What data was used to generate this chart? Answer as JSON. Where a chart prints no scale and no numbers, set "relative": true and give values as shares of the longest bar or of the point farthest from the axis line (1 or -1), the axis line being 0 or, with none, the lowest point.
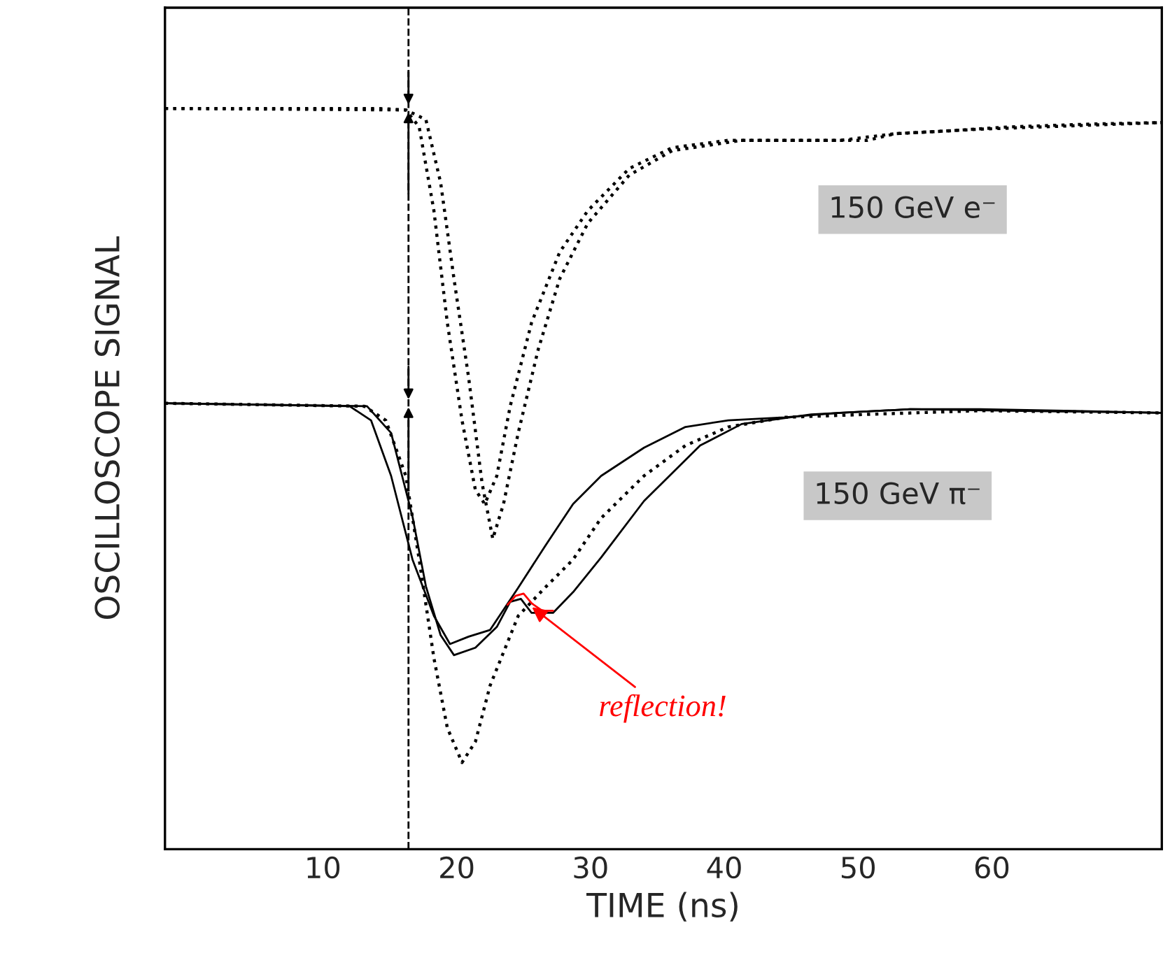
{
  "chart_data": {
    "type": "line",
    "relative": true,
    "xlabel": "TIME (ns)",
    "ylabel": "OSCILLOSCOPE SIGNAL",
    "xlim": [
      -1.8,
      72.7
    ],
    "xticks": [
      10,
      20,
      30,
      40,
      50,
      60
    ],
    "grid": false,
    "legend": false,
    "marker": "none",
    "series": [
      {
        "color": "#000000",
        "line_style": "dotted",
        "x": [
          -1.8,
          14.1,
          16.2,
          17.2,
          18.3,
          19.3,
          20.4,
          21.4,
          22.1,
          23.0,
          24.0,
          25.6,
          27.7,
          29.8,
          32.9,
          36.1,
          40.3,
          46.5,
          50.7,
          52.8,
          57.0,
          61.2,
          67.5,
          72.7
        ],
        "values": [
          1.0,
          1.0,
          0.998,
          0.975,
          0.862,
          0.711,
          0.579,
          0.485,
          0.466,
          0.504,
          0.598,
          0.711,
          0.806,
          0.862,
          0.919,
          0.947,
          0.957,
          0.957,
          0.957,
          0.966,
          0.97,
          0.975,
          0.979,
          0.981
        ]
      },
      {
        "color": "#000000",
        "line_style": "dotted",
        "x": [
          -1.8,
          16.2,
          17.7,
          18.8,
          19.8,
          20.9,
          21.9,
          22.7,
          23.5,
          24.6,
          26.1,
          27.7,
          29.8,
          32.9,
          36.1,
          41.3,
          48.7,
          52.8,
          59.1,
          72.7
        ],
        "values": [
          1.0,
          0.998,
          0.985,
          0.9,
          0.77,
          0.636,
          0.494,
          0.419,
          0.466,
          0.562,
          0.675,
          0.77,
          0.845,
          0.91,
          0.943,
          0.957,
          0.957,
          0.966,
          0.972,
          0.981
        ]
      },
      {
        "color": "#000000",
        "line_style": "solid",
        "x": [
          -1.8,
          12.0,
          13.6,
          15.1,
          16.7,
          18.3,
          19.5,
          20.9,
          22.5,
          24.6,
          26.6,
          28.7,
          30.8,
          34.0,
          37.1,
          40.3,
          44.5,
          48.6,
          53.9,
          59.1,
          65.4,
          72.7
        ],
        "values": [
          0.602,
          0.598,
          0.579,
          0.504,
          0.391,
          0.315,
          0.277,
          0.287,
          0.296,
          0.353,
          0.409,
          0.466,
          0.504,
          0.542,
          0.57,
          0.579,
          0.583,
          0.589,
          0.594,
          0.594,
          0.592,
          0.589
        ]
      },
      {
        "color": "#000000",
        "line_style": "dotted",
        "x": [
          -1.8,
          13.1,
          14.7,
          16.2,
          17.2,
          18.3,
          19.3,
          20.4,
          21.4,
          22.5,
          24.6,
          26.6,
          28.7,
          30.8,
          34.0,
          37.1,
          40.3,
          44.5,
          50.7,
          59.1,
          72.7
        ],
        "values": [
          0.602,
          0.598,
          0.579,
          0.504,
          0.391,
          0.258,
          0.164,
          0.117,
          0.145,
          0.221,
          0.315,
          0.353,
          0.391,
          0.447,
          0.504,
          0.545,
          0.57,
          0.583,
          0.587,
          0.592,
          0.589
        ]
      },
      {
        "color": "#000000",
        "line_style": "solid",
        "x": [
          -1.8,
          13.3,
          15.1,
          16.7,
          17.7,
          18.8,
          19.8,
          21.4,
          23.0,
          24.0,
          24.8,
          25.6,
          27.2,
          28.7,
          30.8,
          34.0,
          38.2,
          41.3,
          46.5,
          53.9,
          72.7
        ],
        "values": [
          0.602,
          0.598,
          0.562,
          0.449,
          0.355,
          0.289,
          0.262,
          0.272,
          0.3,
          0.334,
          0.338,
          0.319,
          0.319,
          0.347,
          0.394,
          0.47,
          0.545,
          0.574,
          0.587,
          0.594,
          0.589
        ]
      },
      {
        "color": "#ff0000",
        "line_style": "solid",
        "x": [
          23.8,
          24.4,
          25.0,
          25.6,
          26.4,
          27.2
        ],
        "values": [
          0.33,
          0.342,
          0.345,
          0.332,
          0.322,
          0.322
        ]
      }
    ],
    "ref_lines": [
      {
        "axis": "x",
        "value": 16.4,
        "line_style": "dashed",
        "color": "#000000"
      }
    ],
    "annotations": [
      "150 GeV e⁻",
      "150 GeV π⁻",
      {
        "text": "reflection!",
        "x": 25.4,
        "y": 0.33
      }
    ]
  }
}
